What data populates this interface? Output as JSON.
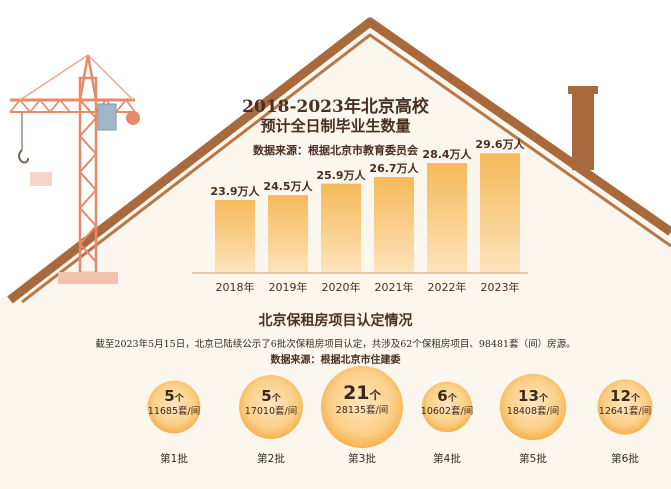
{
  "chart_data": [
    {
      "type": "bar",
      "title": "2018-2023年北京高校",
      "subtitle": "预计全日制毕业生数量",
      "source": "数据来源：根据北京市教育委员会",
      "categories": [
        "2018年",
        "2019年",
        "2020年",
        "2021年",
        "2022年",
        "2023年"
      ],
      "values": [
        23.9,
        24.5,
        25.9,
        26.7,
        28.4,
        29.6
      ],
      "data_labels": [
        "23.9万人",
        "24.5万人",
        "25.9万人",
        "26.7万人",
        "28.4万人",
        "29.6万人"
      ],
      "unit": "万人",
      "colors": {
        "bar_top": "#f6b95a",
        "bar_bottom": "#fde4bc"
      }
    },
    {
      "type": "bubble",
      "title": "北京保租房项目认定情况",
      "description": "截至2023年5月15日，北京已陆续公示了6批次保租房项目认定，共涉及62个保租房项目、98481套（间）房源。",
      "source": "数据来源：根据北京市住建委",
      "categories": [
        "第1批",
        "第2批",
        "第3批",
        "第4批",
        "第5批",
        "第6批"
      ],
      "projects": [
        5,
        5,
        21,
        6,
        13,
        12
      ],
      "project_unit": "个",
      "units": [
        11685,
        17010,
        28135,
        10602,
        18408,
        12641
      ],
      "unit_suffix": "套/间",
      "colors": {
        "circle_center": "#fde6bf",
        "circle_edge": "#f6b14e"
      }
    }
  ],
  "colors": {
    "roof": "#a86a3c",
    "roof_inner": "#b8794a",
    "crane": "#e7896a",
    "crane_light": "#f0a68a",
    "crane_cab": "#9fb8c8",
    "bg_fill": "#fbf6ee",
    "title_text": "#4a3020"
  }
}
